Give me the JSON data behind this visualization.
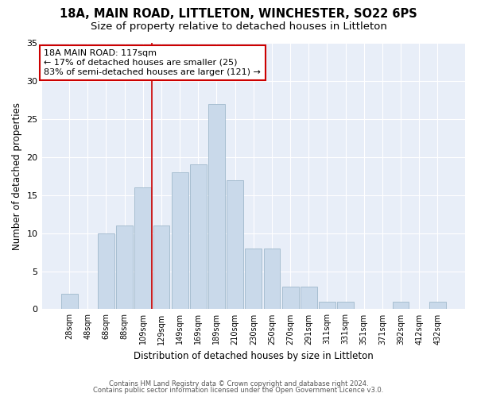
{
  "title1": "18A, MAIN ROAD, LITTLETON, WINCHESTER, SO22 6PS",
  "title2": "Size of property relative to detached houses in Littleton",
  "xlabel": "Distribution of detached houses by size in Littleton",
  "ylabel": "Number of detached properties",
  "categories": [
    "28sqm",
    "48sqm",
    "68sqm",
    "88sqm",
    "109sqm",
    "129sqm",
    "149sqm",
    "169sqm",
    "189sqm",
    "210sqm",
    "230sqm",
    "250sqm",
    "270sqm",
    "291sqm",
    "311sqm",
    "331sqm",
    "351sqm",
    "371sqm",
    "392sqm",
    "412sqm",
    "432sqm"
  ],
  "values": [
    2,
    0,
    10,
    11,
    16,
    11,
    18,
    19,
    27,
    17,
    8,
    8,
    3,
    3,
    1,
    1,
    0,
    0,
    1,
    0,
    1
  ],
  "bar_color": "#c9d9ea",
  "bar_edge_color": "#9fb8cc",
  "vline_color": "#cc0000",
  "annotation_text": "18A MAIN ROAD: 117sqm\n← 17% of detached houses are smaller (25)\n83% of semi-detached houses are larger (121) →",
  "annotation_box_color": "#ffffff",
  "annotation_box_edge_color": "#cc0000",
  "ylim": [
    0,
    35
  ],
  "yticks": [
    0,
    5,
    10,
    15,
    20,
    25,
    30,
    35
  ],
  "bg_color": "#e8eef8",
  "footer1": "Contains HM Land Registry data © Crown copyright and database right 2024.",
  "footer2": "Contains public sector information licensed under the Open Government Licence v3.0.",
  "title1_fontsize": 10.5,
  "title2_fontsize": 9.5
}
